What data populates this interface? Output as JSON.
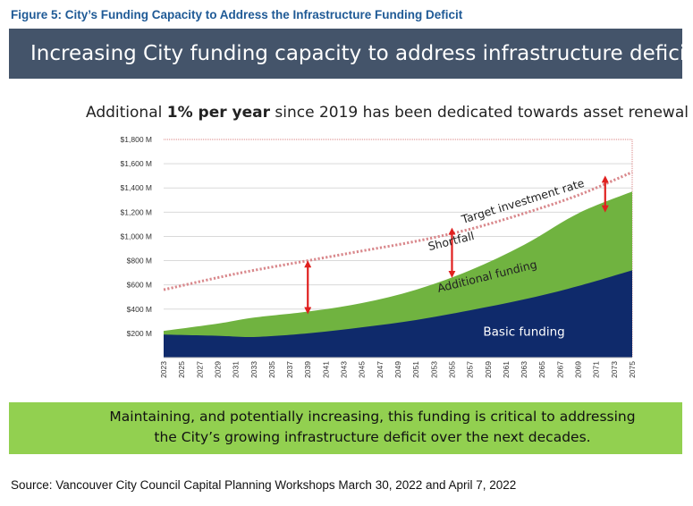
{
  "figure_title": "Figure 5: City’s Funding Capacity to Address the Infrastructure Funding Deficit",
  "banner_title": "Increasing City funding capacity to address infrastructure deficit",
  "headline": {
    "before": "Additional ",
    "bold": "1% per year",
    "after": " since 2019 has been dedicated towards asset renewal"
  },
  "callout": {
    "line1": "Maintaining, and potentially increasing, this funding is critical to addressing",
    "line2": "the City’s growing infrastructure deficit over the next decades."
  },
  "source": "Source: Vancouver City Council Capital Planning Workshops March 30, 2022 and April 7, 2022",
  "colors": {
    "banner": "#44546a",
    "basic_funding": "#0f2a6b",
    "additional_funding": "#70b340",
    "target_line": "#d9888c",
    "arrow": "#e0201f",
    "callout": "#92d050",
    "figure_title": "#1f5a96"
  },
  "chart_data": {
    "type": "area",
    "stacked": true,
    "x": [
      2023,
      2029,
      2033,
      2039,
      2045,
      2051,
      2057,
      2063,
      2069,
      2075
    ],
    "ylim": [
      0,
      1800
    ],
    "yticks": [
      200,
      400,
      600,
      800,
      1000,
      1200,
      1400,
      1600,
      1800
    ],
    "ytick_labels": [
      "$200 M",
      "$400 M",
      "$600 M",
      "$800 M",
      "$1,000 M",
      "$1,200 M",
      "$1,400 M",
      "$1,600 M",
      "$1,800 M"
    ],
    "xtick_labels": [
      "2023",
      "2025",
      "2027",
      "2029",
      "2031",
      "2033",
      "2035",
      "2037",
      "2039",
      "2041",
      "2043",
      "2045",
      "2047",
      "2049",
      "2051",
      "2053",
      "2055",
      "2057",
      "2059",
      "2061",
      "2063",
      "2065",
      "2067",
      "2069",
      "2071",
      "2073",
      "2075"
    ],
    "grid": true,
    "series": [
      {
        "name": "Basic funding",
        "values": [
          190,
          180,
          170,
          200,
          250,
          310,
          390,
          480,
          590,
          720
        ]
      },
      {
        "name": "Additional funding",
        "values": [
          30,
          100,
          160,
          180,
          200,
          250,
          330,
          450,
          600,
          650
        ]
      },
      {
        "name": "Target investment rate",
        "kind": "line",
        "values": [
          560,
          660,
          720,
          800,
          880,
          960,
          1060,
          1190,
          1340,
          1530
        ]
      }
    ],
    "annotations": [
      {
        "text": "Target investment rate",
        "x": 2063,
        "y": 1260
      },
      {
        "text": "Shortfall",
        "x": 2055,
        "y": 930
      },
      {
        "text": "Additional funding",
        "x": 2059,
        "y": 640
      },
      {
        "text": "Basic funding",
        "x": 2063,
        "y": 180
      }
    ],
    "gap_arrows": [
      {
        "x": 2039,
        "from": 380,
        "to": 780
      },
      {
        "x": 2055,
        "from": 680,
        "to": 1050
      },
      {
        "x": 2072,
        "from": 1220,
        "to": 1480
      }
    ]
  }
}
